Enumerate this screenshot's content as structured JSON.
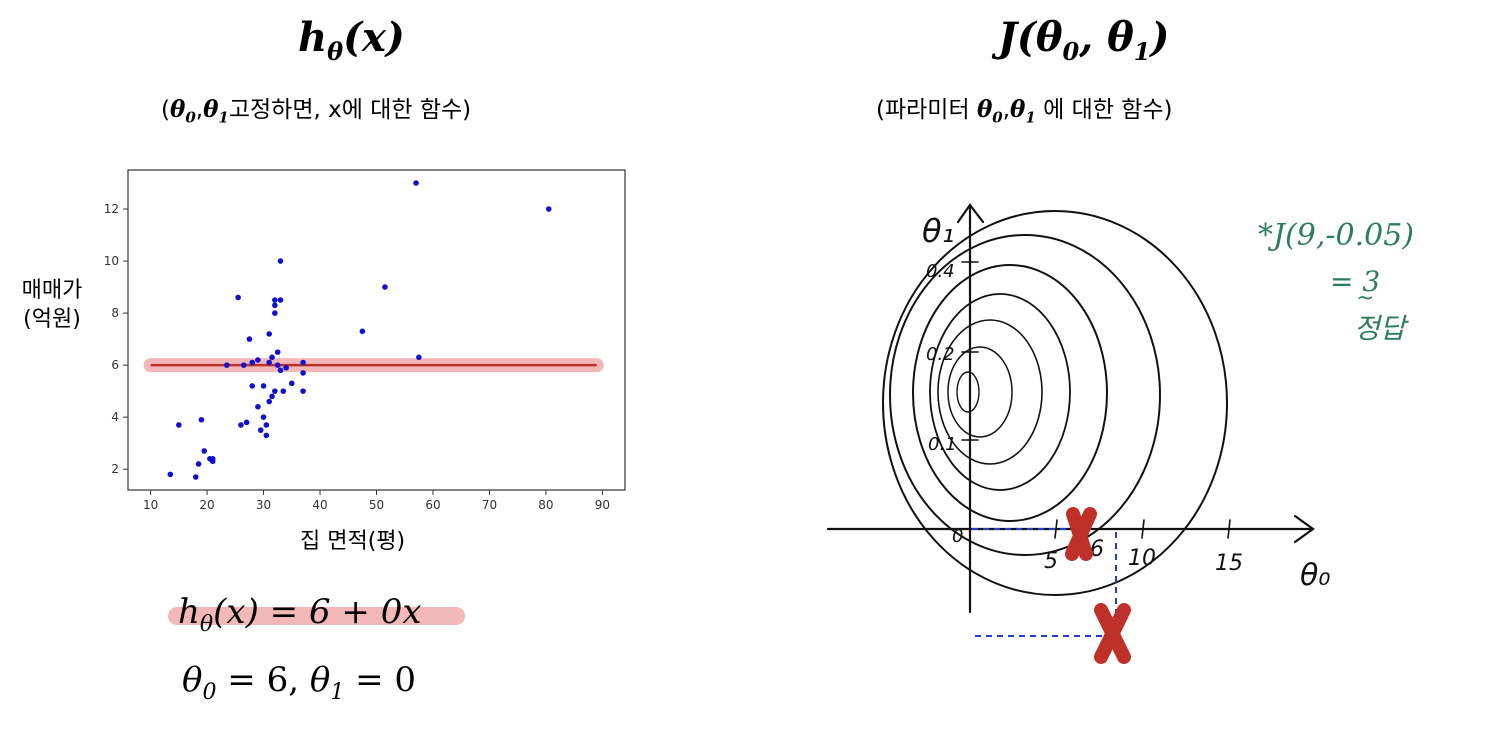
{
  "left": {
    "title": {
      "base": "h",
      "sub": "θ",
      "arg": "(x)"
    },
    "subtitle": {
      "open": "(",
      "theta0": "θ",
      "s0": "0",
      "comma": ",",
      "theta1": "θ",
      "s1": "1",
      "rest": "고정하면, x에 대한 함수)"
    },
    "equation1": {
      "h": "h",
      "sub": "θ",
      "rest": "(x) = 6 + 0x"
    },
    "equation2": {
      "t0": "θ",
      "s0": "0",
      "mid": " = 6, ",
      "t1": "θ",
      "s1": "1",
      "end": " = 0"
    },
    "highlight_color": "#f2b8b8"
  },
  "right": {
    "title": {
      "open": "J(",
      "t0": "θ",
      "s0": "0",
      "comma": ", ",
      "t1": "θ",
      "s1": "1",
      "close": ")"
    },
    "subtitle": {
      "pre": "(파라미터 ",
      "t0": "θ",
      "s0": "0",
      "comma": ",",
      "t1": "θ",
      "s1": "1",
      "post": " 에 대한 함수)"
    },
    "contour_axes": {
      "y_axis_label": "θ₁",
      "x_axis_label": "θ₀",
      "y_ticks": [
        "0.4",
        "0.2",
        "0.1"
      ],
      "x_ticks": [
        "0",
        "5",
        "6",
        "10",
        "15"
      ]
    },
    "annotation": {
      "line1": "*J(9,-0.05)",
      "line2": "= 3",
      "line3": "정답"
    },
    "marker_color": "#c0302a",
    "guide_color": "#1f3fd6",
    "annotation_color": "#2e7d5a"
  },
  "chart_data": {
    "type": "scatter",
    "title": "",
    "xlabel": "집 면적(평)",
    "ylabel": "매매가\n(억원)",
    "xlim": [
      6,
      94
    ],
    "ylim": [
      1.2,
      13.5
    ],
    "xticks": [
      10,
      20,
      30,
      40,
      50,
      60,
      70,
      80,
      90
    ],
    "yticks": [
      2,
      4,
      6,
      8,
      10,
      12
    ],
    "point_color": "#1010d0",
    "x": [
      13.5,
      15,
      18,
      18.5,
      19,
      19.5,
      20.5,
      21,
      21,
      23.5,
      25.5,
      26,
      26.5,
      27,
      27.5,
      28,
      28,
      29,
      29,
      29.5,
      30,
      30,
      30.5,
      30.5,
      31,
      31,
      31,
      31.5,
      31.5,
      32,
      32,
      32,
      32,
      32.5,
      32.5,
      33,
      33,
      33,
      33.5,
      34,
      35,
      37,
      37,
      37,
      47.5,
      51.5,
      57,
      57.5,
      80.5
    ],
    "y": [
      1.8,
      3.7,
      1.7,
      2.2,
      3.9,
      2.7,
      2.4,
      2.3,
      2.4,
      6.0,
      8.6,
      3.7,
      6.0,
      3.8,
      7.0,
      6.1,
      5.2,
      4.4,
      6.2,
      3.5,
      5.2,
      4.0,
      3.3,
      3.7,
      4.6,
      6.1,
      7.2,
      4.8,
      6.3,
      5.0,
      8.0,
      8.3,
      8.5,
      6.0,
      6.5,
      10.0,
      8.5,
      5.8,
      5.0,
      5.9,
      5.3,
      6.1,
      5.7,
      5.0,
      7.3,
      9.0,
      13.0,
      6.3,
      12.0
    ],
    "series": [
      {
        "name": "",
        "type": "line",
        "intercept": 6,
        "slope": 0,
        "x_range": [
          10,
          89
        ],
        "color": "#c0302a"
      }
    ]
  }
}
